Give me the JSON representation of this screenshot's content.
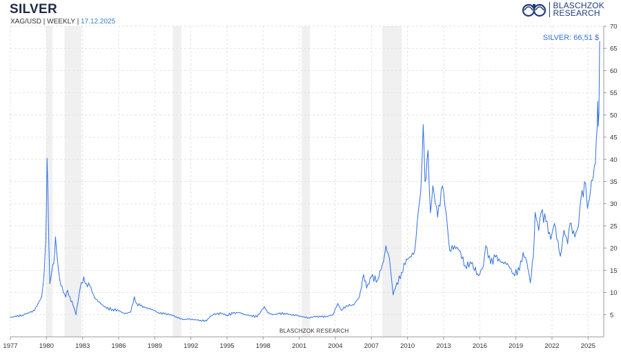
{
  "header": {
    "title": "SILVER",
    "subtitle_prefix": "XAG/USD | WEEKLY | ",
    "subtitle_date": "17.12.2025"
  },
  "logo": {
    "line1": "BLASCHZOK",
    "line2": "RESEARCH"
  },
  "watermark": "BLASCHZOK   RESEARCH",
  "chart_data": {
    "type": "line",
    "title": "SILVER",
    "series": [
      {
        "name": "SILVER",
        "color": "#2f6fe0",
        "points": [
          [
            1977.0,
            4.4
          ],
          [
            1977.5,
            4.6
          ],
          [
            1978.0,
            4.9
          ],
          [
            1978.5,
            5.4
          ],
          [
            1979.0,
            5.9
          ],
          [
            1979.3,
            7.5
          ],
          [
            1979.6,
            9.0
          ],
          [
            1979.8,
            14.0
          ],
          [
            1979.95,
            22.0
          ],
          [
            1980.02,
            34.0
          ],
          [
            1980.05,
            40.2
          ],
          [
            1980.1,
            35.0
          ],
          [
            1980.2,
            21.0
          ],
          [
            1980.28,
            12.0
          ],
          [
            1980.45,
            14.8
          ],
          [
            1980.6,
            16.5
          ],
          [
            1980.75,
            22.5
          ],
          [
            1980.85,
            19.0
          ],
          [
            1981.1,
            13.0
          ],
          [
            1981.4,
            10.0
          ],
          [
            1981.6,
            9.0
          ],
          [
            1981.75,
            10.5
          ],
          [
            1981.95,
            9.0
          ],
          [
            1982.3,
            6.5
          ],
          [
            1982.45,
            5.0
          ],
          [
            1982.6,
            7.5
          ],
          [
            1982.8,
            11.0
          ],
          [
            1983.1,
            13.5
          ],
          [
            1983.3,
            12.0
          ],
          [
            1983.6,
            11.5
          ],
          [
            1984.0,
            8.8
          ],
          [
            1984.5,
            7.5
          ],
          [
            1985.0,
            6.4
          ],
          [
            1985.5,
            6.2
          ],
          [
            1986.0,
            5.9
          ],
          [
            1986.5,
            5.2
          ],
          [
            1987.0,
            5.6
          ],
          [
            1987.3,
            9.0
          ],
          [
            1987.5,
            7.5
          ],
          [
            1987.8,
            7.0
          ],
          [
            1988.3,
            6.5
          ],
          [
            1988.8,
            6.2
          ],
          [
            1989.3,
            5.4
          ],
          [
            1989.8,
            5.2
          ],
          [
            1990.3,
            5.0
          ],
          [
            1990.8,
            4.5
          ],
          [
            1991.3,
            3.9
          ],
          [
            1991.8,
            4.0
          ],
          [
            1992.3,
            3.9
          ],
          [
            1992.8,
            3.7
          ],
          [
            1993.3,
            3.6
          ],
          [
            1993.6,
            4.6
          ],
          [
            1993.9,
            5.1
          ],
          [
            1994.5,
            5.3
          ],
          [
            1995.0,
            4.9
          ],
          [
            1995.5,
            5.3
          ],
          [
            1996.0,
            5.5
          ],
          [
            1996.5,
            5.0
          ],
          [
            1997.0,
            4.8
          ],
          [
            1997.5,
            4.5
          ],
          [
            1998.1,
            6.8
          ],
          [
            1998.4,
            5.4
          ],
          [
            1998.8,
            5.0
          ],
          [
            1999.3,
            5.2
          ],
          [
            1999.8,
            5.3
          ],
          [
            2000.3,
            5.0
          ],
          [
            2000.8,
            4.8
          ],
          [
            2001.3,
            4.5
          ],
          [
            2001.8,
            4.3
          ],
          [
            2002.3,
            4.6
          ],
          [
            2002.8,
            4.5
          ],
          [
            2003.3,
            4.6
          ],
          [
            2003.8,
            5.0
          ],
          [
            2004.2,
            7.5
          ],
          [
            2004.5,
            6.0
          ],
          [
            2004.9,
            7.0
          ],
          [
            2005.5,
            7.2
          ],
          [
            2006.0,
            9.0
          ],
          [
            2006.35,
            14.0
          ],
          [
            2006.6,
            11.0
          ],
          [
            2007.0,
            13.5
          ],
          [
            2007.5,
            12.8
          ],
          [
            2008.0,
            17.0
          ],
          [
            2008.2,
            20.5
          ],
          [
            2008.5,
            17.5
          ],
          [
            2008.8,
            9.5
          ],
          [
            2009.0,
            11.0
          ],
          [
            2009.5,
            14.5
          ],
          [
            2009.9,
            17.5
          ],
          [
            2010.3,
            18.0
          ],
          [
            2010.6,
            19.5
          ],
          [
            2010.9,
            28.5
          ],
          [
            2011.1,
            33.0
          ],
          [
            2011.3,
            47.8
          ],
          [
            2011.45,
            35.0
          ],
          [
            2011.7,
            42.0
          ],
          [
            2011.9,
            28.0
          ],
          [
            2012.1,
            34.0
          ],
          [
            2012.5,
            27.0
          ],
          [
            2012.9,
            34.0
          ],
          [
            2013.2,
            28.0
          ],
          [
            2013.5,
            19.5
          ],
          [
            2013.9,
            20.5
          ],
          [
            2014.3,
            19.5
          ],
          [
            2014.8,
            16.0
          ],
          [
            2015.3,
            16.5
          ],
          [
            2015.9,
            13.8
          ],
          [
            2016.3,
            16.0
          ],
          [
            2016.5,
            20.5
          ],
          [
            2016.9,
            16.5
          ],
          [
            2017.3,
            18.0
          ],
          [
            2017.8,
            16.8
          ],
          [
            2018.3,
            16.5
          ],
          [
            2018.8,
            14.2
          ],
          [
            2019.3,
            15.0
          ],
          [
            2019.6,
            19.0
          ],
          [
            2019.9,
            17.0
          ],
          [
            2020.2,
            12.2
          ],
          [
            2020.45,
            18.0
          ],
          [
            2020.6,
            28.0
          ],
          [
            2020.9,
            24.0
          ],
          [
            2021.1,
            28.0
          ],
          [
            2021.5,
            26.0
          ],
          [
            2021.9,
            22.0
          ],
          [
            2022.2,
            25.5
          ],
          [
            2022.7,
            18.2
          ],
          [
            2023.0,
            24.0
          ],
          [
            2023.3,
            21.0
          ],
          [
            2023.5,
            25.5
          ],
          [
            2023.9,
            22.5
          ],
          [
            2024.2,
            25.0
          ],
          [
            2024.4,
            31.0
          ],
          [
            2024.8,
            34.5
          ],
          [
            2024.95,
            29.0
          ],
          [
            2025.2,
            33.0
          ],
          [
            2025.45,
            36.5
          ],
          [
            2025.6,
            39.0
          ],
          [
            2025.75,
            47.0
          ],
          [
            2025.8,
            53.0
          ],
          [
            2025.85,
            47.5
          ],
          [
            2025.9,
            50.5
          ],
          [
            2025.96,
            66.5
          ]
        ]
      }
    ],
    "annotations": [
      {
        "text": "SILVER: 66,51 $"
      }
    ],
    "x_ticks": [
      "1977",
      "1980",
      "1983",
      "1986",
      "1989",
      "1992",
      "1995",
      "1998",
      "2001",
      "2004",
      "2007",
      "2010",
      "2013",
      "2016",
      "2019",
      "2022",
      "2025"
    ],
    "y_ticks": [
      "5",
      "10",
      "15",
      "20",
      "25",
      "30",
      "35",
      "40",
      "45",
      "50",
      "55",
      "60",
      "65",
      "70"
    ],
    "xlim": [
      1977,
      2026.3
    ],
    "ylim": [
      0,
      70
    ],
    "recessions": [
      [
        1980.0,
        1980.5
      ],
      [
        1981.5,
        1982.9
      ],
      [
        1990.5,
        1991.2
      ],
      [
        2001.2,
        2001.9
      ],
      [
        2007.9,
        2009.5
      ]
    ],
    "grid": true,
    "y_axis_side": "right",
    "line_color": "#2f6fe0",
    "recession_color": "#f0f0f0"
  }
}
